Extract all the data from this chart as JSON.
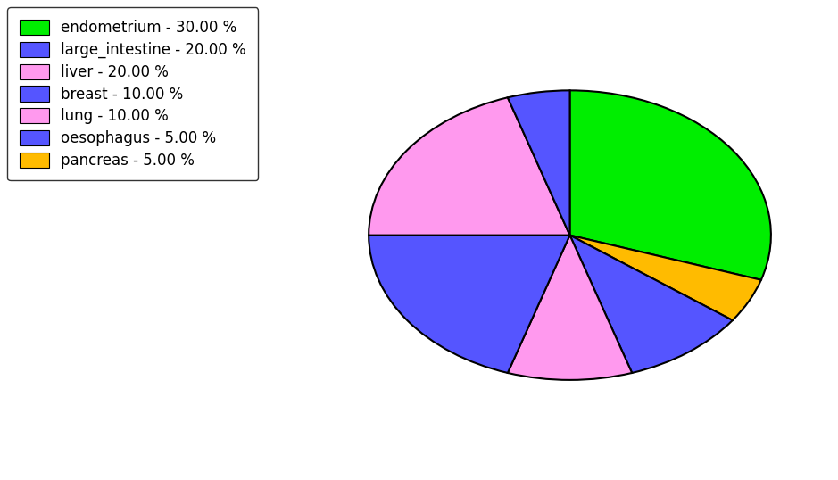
{
  "labels": [
    "endometrium",
    "pancreas",
    "breast",
    "lung",
    "large_intestine",
    "liver",
    "oesophagus"
  ],
  "sizes": [
    30,
    5,
    10,
    10,
    20,
    20,
    5
  ],
  "colors": [
    "#00ee00",
    "#ffbb00",
    "#5555ff",
    "#ff99ee",
    "#5555ff",
    "#ff99ee",
    "#5555ff"
  ],
  "pie_colors_order": [
    "#00ee00",
    "#ffbb00",
    "#5555ff",
    "#ff99ee",
    "#5555ff",
    "#ff99ee",
    "#5555ff"
  ],
  "legend_labels": [
    "endometrium - 30.00 %",
    "large_intestine - 20.00 %",
    "liver - 20.00 %",
    "breast - 10.00 %",
    "lung - 10.00 %",
    "oesophagus - 5.00 %",
    "pancreas - 5.00 %"
  ],
  "legend_colors": [
    "#00ee00",
    "#5555ff",
    "#ff99ee",
    "#5555ff",
    "#ff99ee",
    "#5555ff",
    "#ffbb00"
  ],
  "startangle": 90,
  "figsize": [
    9.39,
    5.38
  ],
  "dpi": 100
}
